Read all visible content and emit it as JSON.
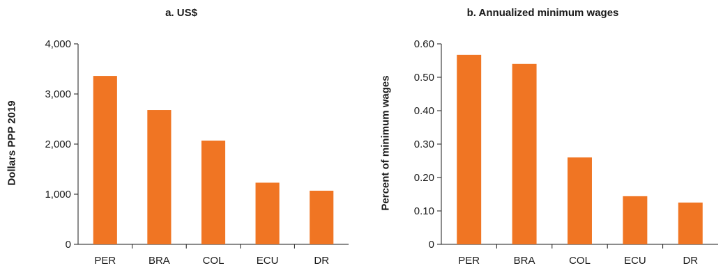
{
  "chart_data": [
    {
      "type": "bar",
      "title": "a. US$",
      "ylabel": "Dollars PPP 2019",
      "xlabel": "",
      "categories": [
        "PER",
        "BRA",
        "COL",
        "ECU",
        "DR"
      ],
      "values": [
        3360,
        2680,
        2070,
        1230,
        1070
      ],
      "ylim": [
        0,
        4000
      ],
      "yticks": [
        0,
        1000,
        2000,
        3000,
        4000
      ],
      "ytick_labels": [
        "0",
        "1,000",
        "2,000",
        "3,000",
        "4,000"
      ],
      "grid": false,
      "bar_color": "#f07523"
    },
    {
      "type": "bar",
      "title": "b. Annualized minimum wages",
      "ylabel": "Percent of minimum wages",
      "xlabel": "",
      "categories": [
        "PER",
        "BRA",
        "COL",
        "ECU",
        "DR"
      ],
      "values": [
        0.567,
        0.54,
        0.26,
        0.144,
        0.125
      ],
      "ylim": [
        0,
        0.6
      ],
      "yticks": [
        0,
        0.1,
        0.2,
        0.3,
        0.4,
        0.5,
        0.6
      ],
      "ytick_labels": [
        "0",
        "0.10",
        "0.20",
        "0.30",
        "0.40",
        "0.50",
        "0.60"
      ],
      "grid": false,
      "bar_color": "#f07523"
    }
  ]
}
